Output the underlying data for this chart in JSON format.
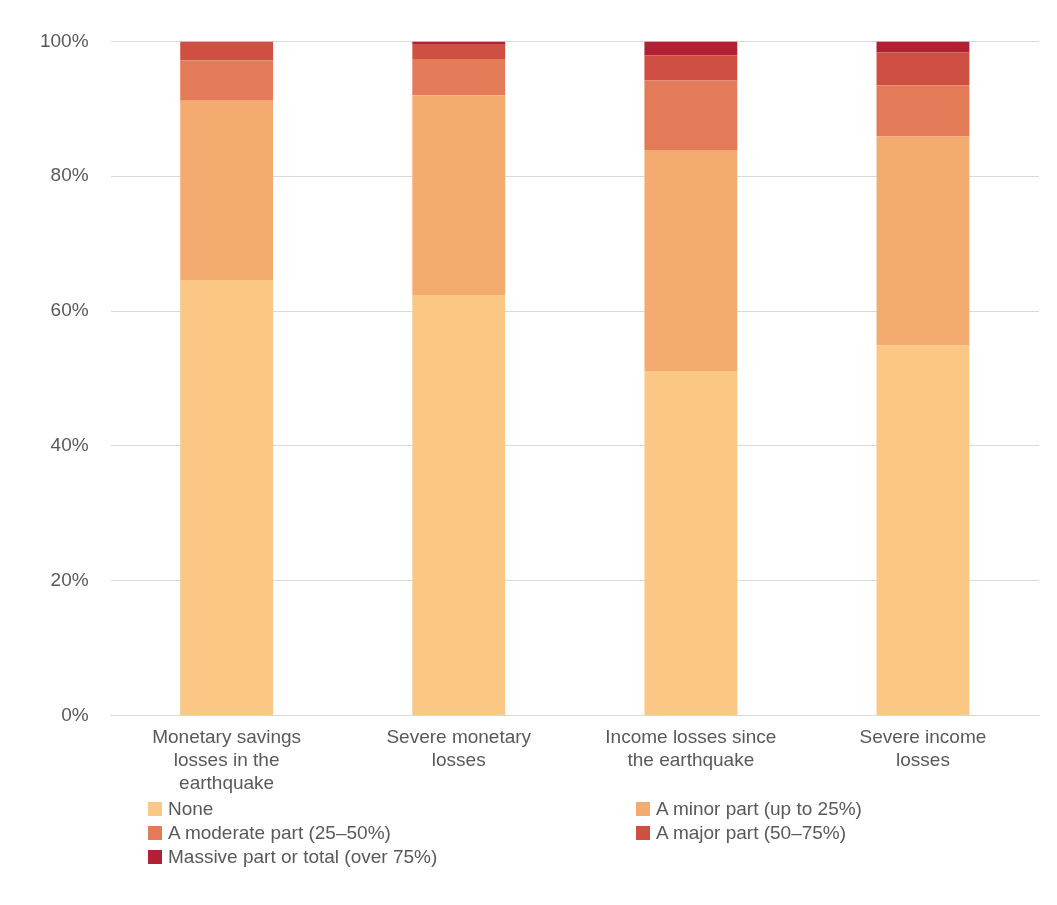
{
  "chart_data": {
    "type": "bar",
    "stacked": true,
    "categories": [
      "Monetary savings losses in the earthquake",
      "Severe monetary losses",
      "Income losses since the earthquake",
      "Severe income losses"
    ],
    "series": [
      {
        "name": "None",
        "color": "#fac784",
        "values": [
          64.6,
          62.4,
          51.1,
          54.9
        ]
      },
      {
        "name": "A minor part (up to 25%)",
        "color": "#f4ab70",
        "values": [
          26.6,
          29.6,
          32.8,
          31.0
        ]
      },
      {
        "name": "A moderate part (25–50%)",
        "color": "#e37b59",
        "values": [
          6.0,
          5.4,
          10.3,
          7.6
        ]
      },
      {
        "name": "A major part (50–75%)",
        "color": "#cf4f42",
        "values": [
          2.8,
          2.2,
          3.7,
          4.9
        ]
      },
      {
        "name": "Massive part or total (over 75%)",
        "color": "#b31f34",
        "values": [
          0,
          0.4,
          2.1,
          1.6
        ]
      }
    ],
    "ylim": [
      0,
      100
    ],
    "yticks": [
      {
        "value": 0,
        "label": "0%"
      },
      {
        "value": 20,
        "label": "20%"
      },
      {
        "value": 40,
        "label": "40%"
      },
      {
        "value": 60,
        "label": "60%"
      },
      {
        "value": 80,
        "label": "80%"
      },
      {
        "value": 100,
        "label": "100%"
      }
    ],
    "grid": "y",
    "legend": "bottom"
  }
}
